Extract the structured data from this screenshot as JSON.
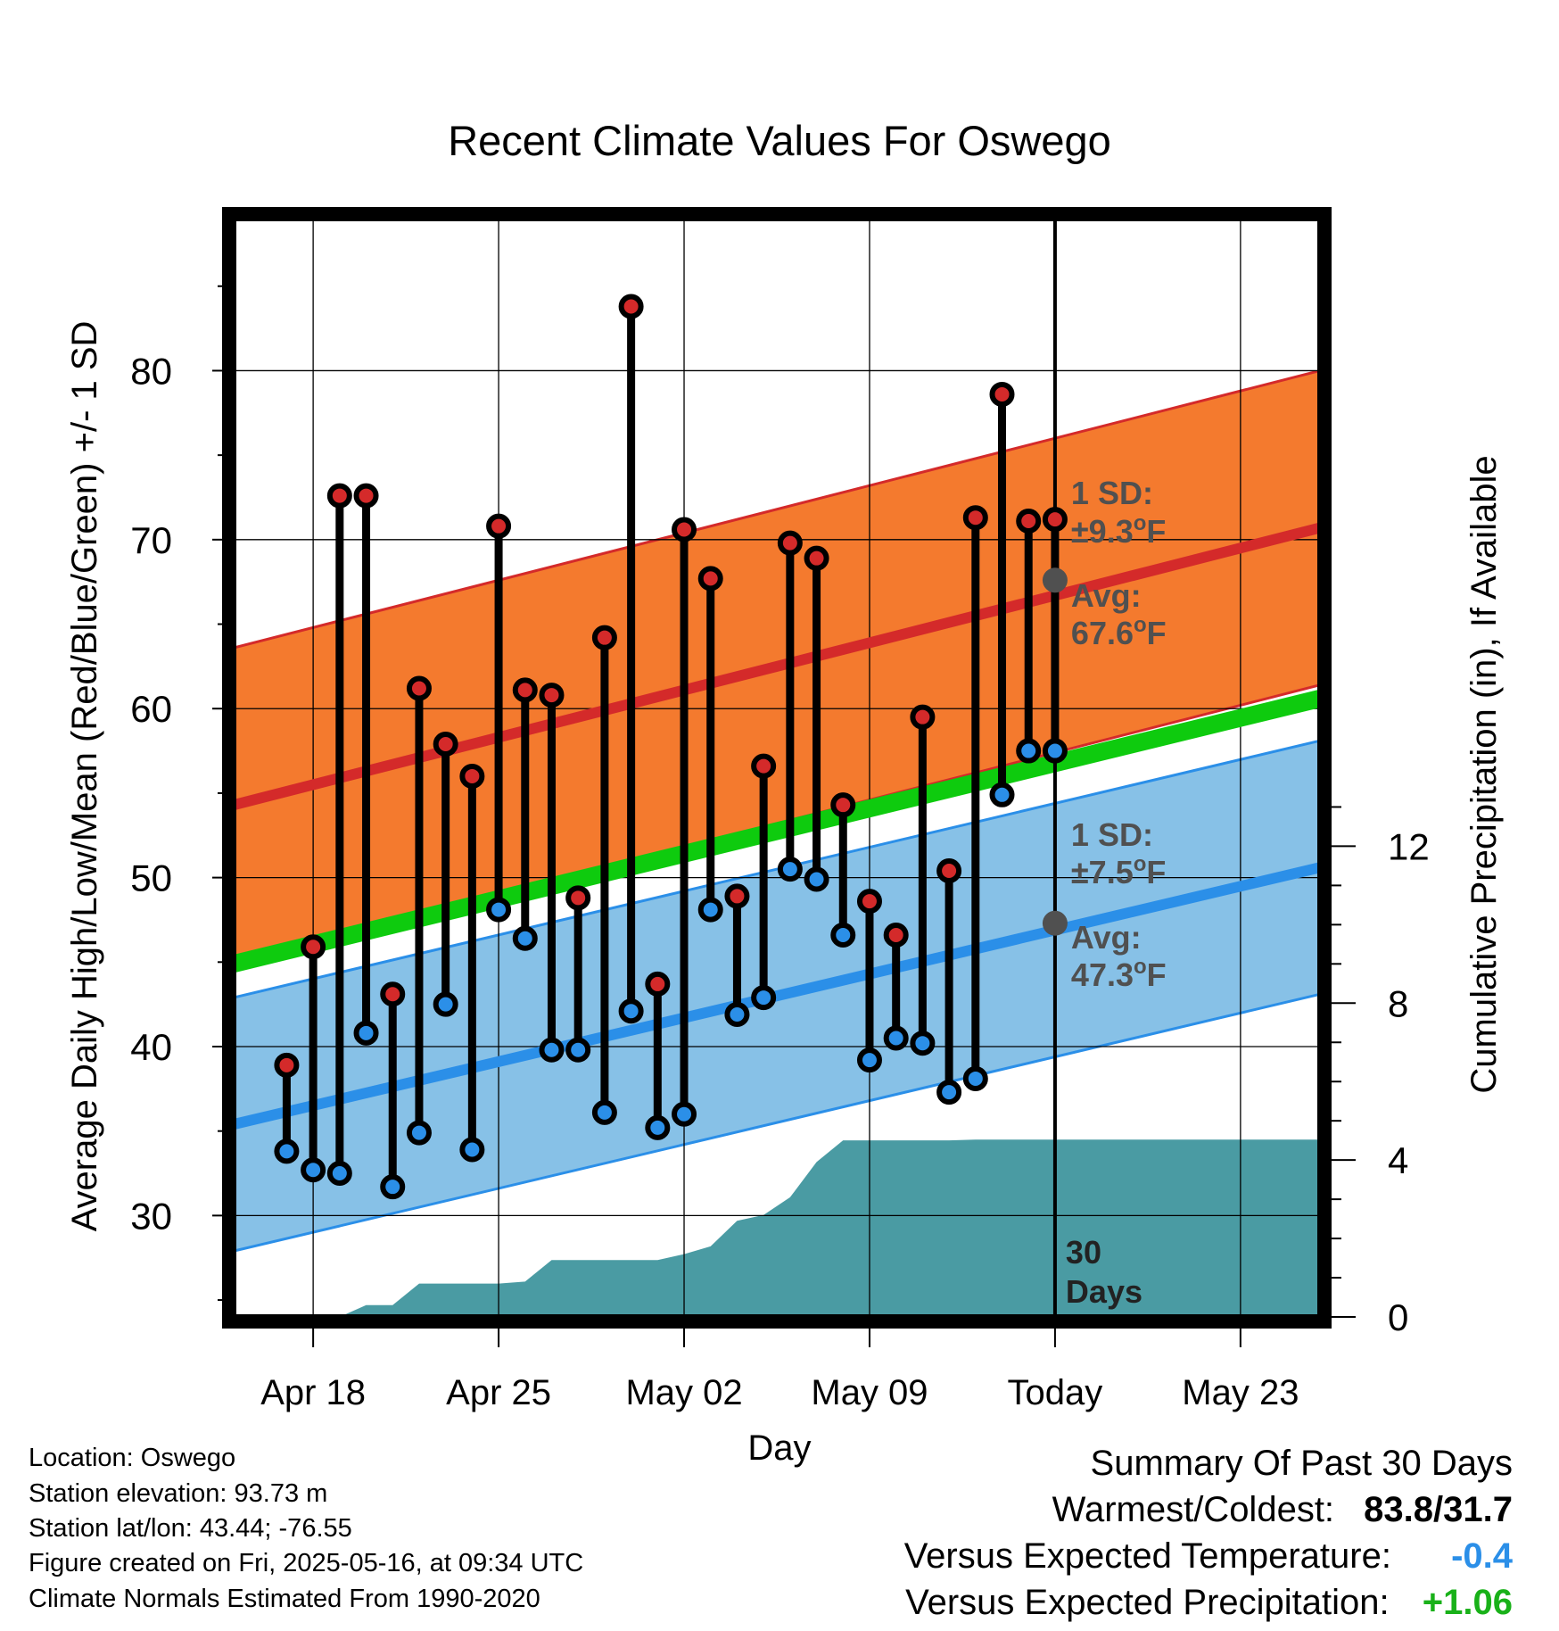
{
  "chart_data": {
    "type": "line",
    "title": "Recent Climate Values For Oswego",
    "xlabel": "Day",
    "ylabel_left": "Average Daily High/Low/Mean (Red/Blue/Green) +/- 1 SD",
    "ylabel_right": "Cumulative Precipitation (in), If Available",
    "ylim_left": [
      24,
      89
    ],
    "ylim_right": [
      0,
      28
    ],
    "x_range_days": [
      "Apr 15",
      "May 26"
    ],
    "x_ticks": [
      {
        "date": "Apr 18",
        "label": "Apr 18"
      },
      {
        "date": "Apr 25",
        "label": "Apr 25"
      },
      {
        "date": "May 02",
        "label": "May 02"
      },
      {
        "date": "May 09",
        "label": "May 09"
      },
      {
        "date": "May 16",
        "label": "Today"
      },
      {
        "date": "May 23",
        "label": "May 23"
      }
    ],
    "y_ticks_left": [
      "30",
      "40",
      "50",
      "60",
      "70",
      "80"
    ],
    "y_ticks_right": [
      "0",
      "4",
      "8",
      "12"
    ],
    "today_label": "30\nDays",
    "daily_values": [
      {
        "date": "Apr 17",
        "high": 38.9,
        "low": 33.8
      },
      {
        "date": "Apr 18",
        "high": 45.9,
        "low": 32.7
      },
      {
        "date": "Apr 19",
        "high": 72.6,
        "low": 32.5
      },
      {
        "date": "Apr 20",
        "high": 72.6,
        "low": 40.8
      },
      {
        "date": "Apr 21",
        "high": 43.1,
        "low": 31.7
      },
      {
        "date": "Apr 22",
        "high": 61.2,
        "low": 34.9
      },
      {
        "date": "Apr 23",
        "high": 57.9,
        "low": 42.5
      },
      {
        "date": "Apr 24",
        "high": 56.0,
        "low": 33.9
      },
      {
        "date": "Apr 25",
        "high": 70.8,
        "low": 48.1
      },
      {
        "date": "Apr 26",
        "high": 61.1,
        "low": 46.4
      },
      {
        "date": "Apr 27",
        "high": 60.8,
        "low": 39.8
      },
      {
        "date": "Apr 28",
        "high": 48.8,
        "low": 39.8
      },
      {
        "date": "Apr 29",
        "high": 64.2,
        "low": 36.1
      },
      {
        "date": "Apr 30",
        "high": 83.8,
        "low": 42.1
      },
      {
        "date": "May 01",
        "high": 43.7,
        "low": 35.2
      },
      {
        "date": "May 02",
        "high": 70.6,
        "low": 36.0
      },
      {
        "date": "May 03",
        "high": 67.7,
        "low": 48.1
      },
      {
        "date": "May 04",
        "high": 48.9,
        "low": 41.9
      },
      {
        "date": "May 05",
        "high": 56.6,
        "low": 42.9
      },
      {
        "date": "May 06",
        "high": 69.8,
        "low": 50.5
      },
      {
        "date": "May 07",
        "high": 68.9,
        "low": 49.9
      },
      {
        "date": "May 08",
        "high": 54.3,
        "low": 46.6
      },
      {
        "date": "May 09",
        "high": 48.6,
        "low": 39.2
      },
      {
        "date": "May 10",
        "high": 46.6,
        "low": 40.5
      },
      {
        "date": "May 11",
        "high": 59.5,
        "low": 40.2
      },
      {
        "date": "May 12",
        "high": 50.4,
        "low": 37.3
      },
      {
        "date": "May 13",
        "high": 71.3,
        "low": 38.1
      },
      {
        "date": "May 14",
        "high": 78.6,
        "low": 54.9
      },
      {
        "date": "May 15",
        "high": 71.1,
        "low": 57.5
      },
      {
        "date": "May 16",
        "high": 71.2,
        "low": 57.5
      }
    ],
    "normal_high": {
      "start": 54.3,
      "end": 70.7,
      "sd": 9.3
    },
    "normal_low": {
      "start": 35.4,
      "end": 50.6,
      "sd": 7.5
    },
    "normal_mean": {
      "start": 44.9,
      "end": 60.6
    },
    "precipitation_cumulative": [
      {
        "date": "Apr 18",
        "value": 0.0
      },
      {
        "date": "Apr 19",
        "value": 0.0
      },
      {
        "date": "Apr 20",
        "value": 0.3
      },
      {
        "date": "Apr 21",
        "value": 0.3
      },
      {
        "date": "Apr 22",
        "value": 0.85
      },
      {
        "date": "Apr 23",
        "value": 0.85
      },
      {
        "date": "Apr 24",
        "value": 0.85
      },
      {
        "date": "Apr 25",
        "value": 0.85
      },
      {
        "date": "Apr 26",
        "value": 0.9
      },
      {
        "date": "Apr 27",
        "value": 1.45
      },
      {
        "date": "Apr 28",
        "value": 1.45
      },
      {
        "date": "Apr 29",
        "value": 1.45
      },
      {
        "date": "Apr 30",
        "value": 1.45
      },
      {
        "date": "May 01",
        "value": 1.45
      },
      {
        "date": "May 02",
        "value": 1.6
      },
      {
        "date": "May 03",
        "value": 1.8
      },
      {
        "date": "May 04",
        "value": 2.45
      },
      {
        "date": "May 05",
        "value": 2.6
      },
      {
        "date": "May 06",
        "value": 3.05
      },
      {
        "date": "May 07",
        "value": 3.95
      },
      {
        "date": "May 08",
        "value": 4.5
      },
      {
        "date": "May 09",
        "value": 4.5
      },
      {
        "date": "May 10",
        "value": 4.5
      },
      {
        "date": "May 11",
        "value": 4.5
      },
      {
        "date": "May 12",
        "value": 4.5
      },
      {
        "date": "May 13",
        "value": 4.52
      },
      {
        "date": "May 14",
        "value": 4.52
      },
      {
        "date": "May 15",
        "value": 4.52
      },
      {
        "date": "May 16",
        "value": 4.52
      },
      {
        "date": "May 26",
        "value": 4.52
      }
    ],
    "annotations": {
      "high_sd_label": "1 SD:",
      "high_sd_value": "±9.3",
      "high_avg_label": "Avg:",
      "high_avg_value": "67.6",
      "low_sd_label": "1 SD:",
      "low_sd_value": "±7.5",
      "low_avg_label": "Avg:",
      "low_avg_value": "47.3",
      "degree_unit": "o",
      "unit_letter": "F",
      "today_high_avg": 67.6,
      "today_low_avg": 47.3
    },
    "colors": {
      "high_band": "#f47a2e",
      "high_line": "#d42a2a",
      "low_band": "#87c1e7",
      "low_line": "#2b8fe8",
      "mean_line": "#0ecb0e",
      "precip": "#4a9ba3",
      "high_dot": "#d42a2a",
      "low_dot": "#2b8fe8",
      "avg_dot": "#505050",
      "annotation_text": "#505050"
    }
  },
  "meta": {
    "location": "Location: Oswego",
    "elevation": "Station elevation: 93.73 m",
    "latlon": "Station lat/lon: 43.44; -76.55",
    "created": "Figure created on Fri, 2025-05-16, at 09:34 UTC",
    "normals": "Climate Normals Estimated From 1990-2020"
  },
  "summary": {
    "title": "Summary Of Past 30 Days",
    "warm_cold_label": "Warmest/Coldest:",
    "warm_cold_value": "83.8/31.7",
    "temp_label": "Versus Expected Temperature:",
    "temp_value": "-0.4",
    "temp_color": "#2b8fe8",
    "precip_label": "Versus Expected Precipitation:",
    "precip_value": "+1.06",
    "precip_color": "#19b119"
  }
}
